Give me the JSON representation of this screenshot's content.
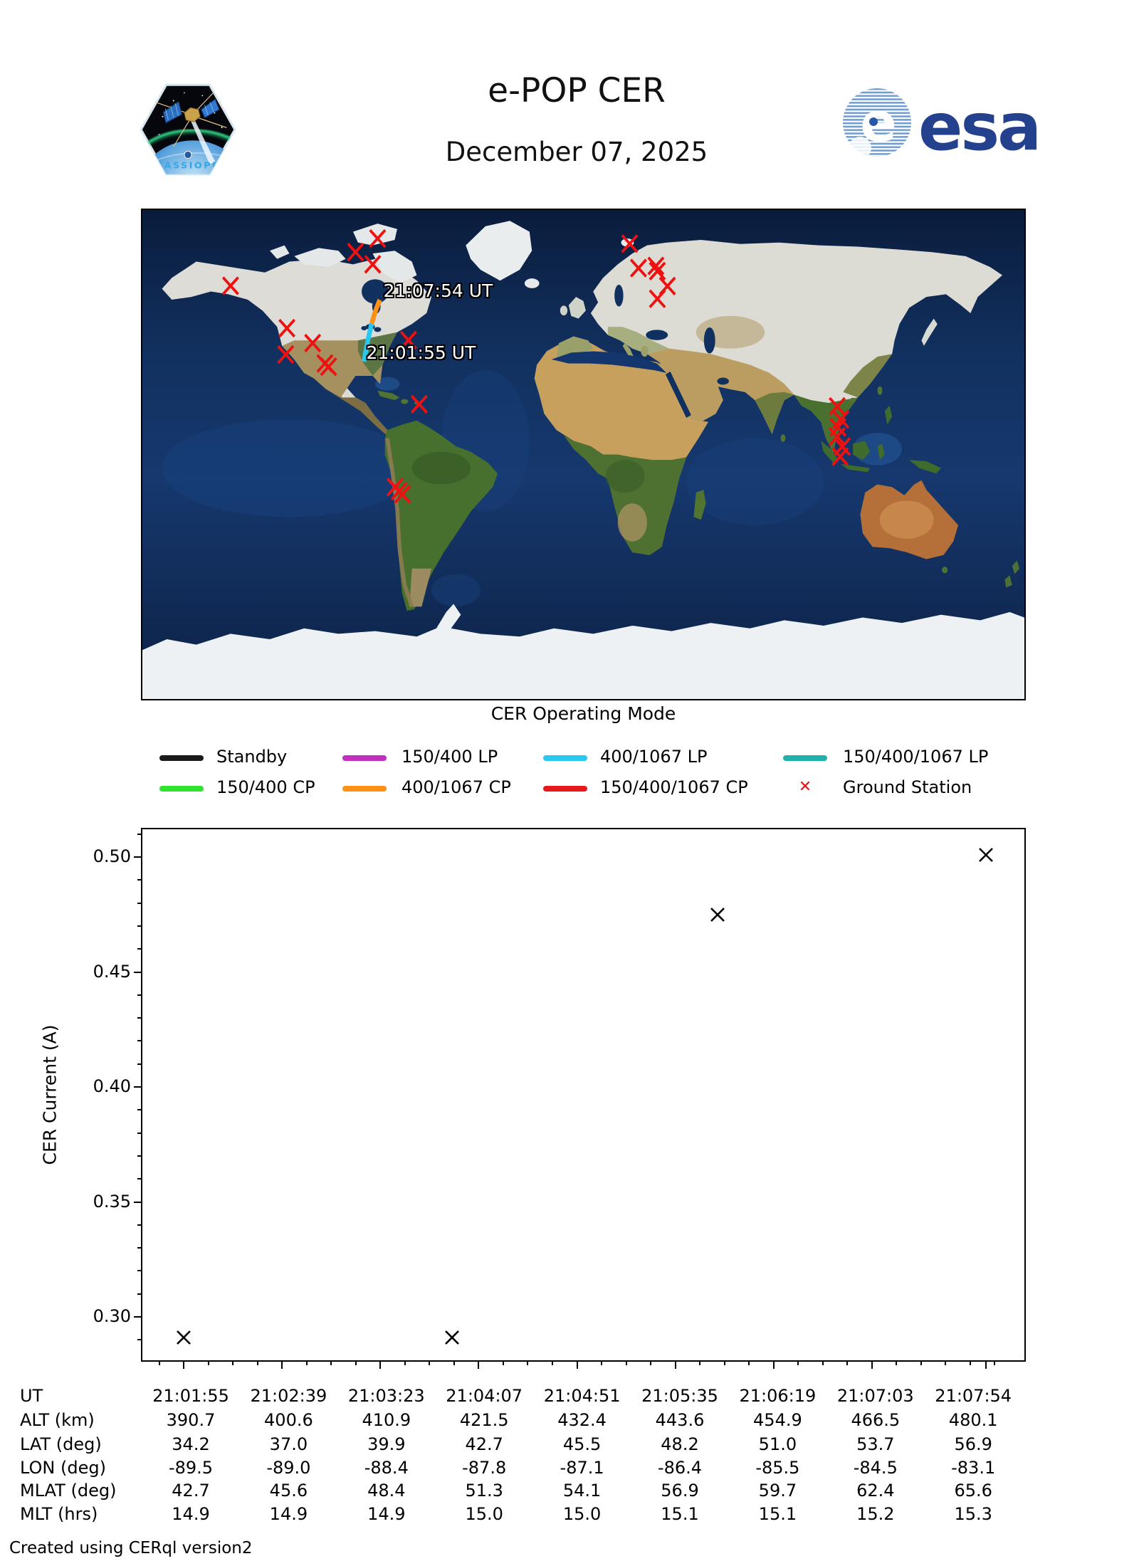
{
  "header": {
    "title": "e-POP CER",
    "date": "December 07, 2025",
    "patch_text": "CASSIOPE",
    "esa_text": "esa"
  },
  "map": {
    "label_start": "21:01:55 UT",
    "label_end": "21:07:54 UT",
    "ground_station_color": "#ee1111",
    "track": {
      "lp_mode": "400/1067 LP",
      "cp_mode": "400/1067 CP",
      "lp_color": "#29c8f0",
      "cp_color": "#ff9016",
      "lp_points": [
        [
          -89.5,
          34.2
        ],
        [
          -89.0,
          37.0
        ],
        [
          -88.4,
          39.9
        ],
        [
          -87.8,
          42.7
        ],
        [
          -87.1,
          45.5
        ],
        [
          -86.4,
          48.2
        ]
      ],
      "cp_points": [
        [
          -86.4,
          48.2
        ],
        [
          -85.5,
          51.0
        ],
        [
          -84.5,
          53.7
        ],
        [
          -83.1,
          56.9
        ]
      ]
    },
    "ground_stations": [
      [
        -144.0,
        62.1
      ],
      [
        -121.0,
        46.5
      ],
      [
        -121.5,
        36.8
      ],
      [
        -110.5,
        41.0
      ],
      [
        -105.5,
        33.5
      ],
      [
        -104.0,
        32.3
      ],
      [
        -93.0,
        74.5
      ],
      [
        -86.0,
        70.0
      ],
      [
        -84.0,
        79.5
      ],
      [
        -71.4,
        42.1
      ],
      [
        -67.0,
        18.5
      ],
      [
        -76.9,
        -12.0
      ],
      [
        -75.2,
        -13.5
      ],
      [
        -73.8,
        -14.6
      ],
      [
        18.9,
        77.6
      ],
      [
        22.5,
        68.6
      ],
      [
        29.6,
        69.4
      ],
      [
        30.2,
        67.5
      ],
      [
        34.3,
        62.0
      ],
      [
        30.2,
        57.3
      ],
      [
        103.6,
        17.7
      ],
      [
        105.1,
        12.9
      ],
      [
        103.9,
        10.0
      ],
      [
        103.6,
        6.6
      ],
      [
        105.7,
        2.9
      ],
      [
        104.8,
        -0.8
      ]
    ]
  },
  "legend": {
    "title": "CER Operating Mode",
    "items": [
      {
        "label": "Standby",
        "color": "#1a1a1a",
        "row": 0,
        "col": 0,
        "type": "line"
      },
      {
        "label": "150/400 LP",
        "color": "#bf30bf",
        "row": 0,
        "col": 1,
        "type": "line"
      },
      {
        "label": "400/1067 LP",
        "color": "#29c8f0",
        "row": 0,
        "col": 2,
        "type": "line"
      },
      {
        "label": "150/400/1067 LP",
        "color": "#20b2aa",
        "row": 0,
        "col": 3,
        "type": "line"
      },
      {
        "label": "150/400 CP",
        "color": "#2fe32f",
        "row": 1,
        "col": 0,
        "type": "line"
      },
      {
        "label": "400/1067 CP",
        "color": "#ff9016",
        "row": 1,
        "col": 1,
        "type": "line"
      },
      {
        "label": "150/400/1067 CP",
        "color": "#e8191c",
        "row": 1,
        "col": 2,
        "type": "line"
      },
      {
        "label": "Ground Station",
        "color": "#ee1111",
        "row": 1,
        "col": 3,
        "type": "marker"
      }
    ]
  },
  "chart_data": {
    "type": "scatter",
    "title": "",
    "xlabel": "UT",
    "ylabel": "CER Current (A)",
    "marker": "x",
    "grid": false,
    "ylim": [
      0.2805,
      0.5115
    ],
    "xlim_seconds": [
      -17.95,
      376.95
    ],
    "y_ticks": [
      "0.30",
      "0.35",
      "0.40",
      "0.45",
      "0.50"
    ],
    "y_minor_step": 0.01,
    "x_ticks": [
      "21:01:55",
      "21:02:39",
      "21:03:23",
      "21:04:07",
      "21:04:51",
      "21:05:35",
      "21:06:19",
      "21:07:03",
      "21:07:54"
    ],
    "x_major_ticks_seconds": [
      0,
      44,
      88,
      132,
      176,
      220,
      264,
      308,
      359
    ],
    "x_minor_step_seconds": 11,
    "points": [
      {
        "ut": "21:01:55",
        "t": 0,
        "value": 0.291
      },
      {
        "ut": "21:03:55",
        "t": 120,
        "value": 0.291
      },
      {
        "ut": "21:05:54",
        "t": 239,
        "value": 0.475
      },
      {
        "ut": "21:07:54",
        "t": 359,
        "value": 0.501
      }
    ]
  },
  "table": {
    "row_labels": [
      "UT",
      "ALT (km)",
      "LAT (deg)",
      "LON (deg)",
      "MLAT (deg)",
      "MLT (hrs)"
    ],
    "rows": [
      [
        "21:01:55",
        "21:02:39",
        "21:03:23",
        "21:04:07",
        "21:04:51",
        "21:05:35",
        "21:06:19",
        "21:07:03",
        "21:07:54"
      ],
      [
        "390.7",
        "400.6",
        "410.9",
        "421.5",
        "432.4",
        "443.6",
        "454.9",
        "466.5",
        "480.1"
      ],
      [
        "34.2",
        "37.0",
        "39.9",
        "42.7",
        "45.5",
        "48.2",
        "51.0",
        "53.7",
        "56.9"
      ],
      [
        "-89.5",
        "-89.0",
        "-88.4",
        "-87.8",
        "-87.1",
        "-86.4",
        "-85.5",
        "-84.5",
        "-83.1"
      ],
      [
        "42.7",
        "45.6",
        "48.4",
        "51.3",
        "54.1",
        "56.9",
        "59.7",
        "62.4",
        "65.6"
      ],
      [
        "14.9",
        "14.9",
        "14.9",
        "15.0",
        "15.0",
        "15.1",
        "15.1",
        "15.2",
        "15.3"
      ]
    ]
  },
  "footer": "Created using CERql version2"
}
